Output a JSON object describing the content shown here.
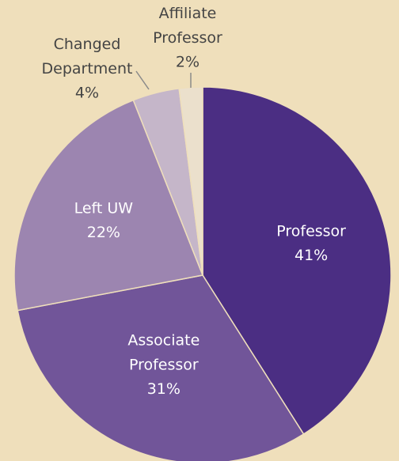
{
  "chart_data": {
    "type": "pie",
    "categories": [
      "Professor",
      "Associate Professor",
      "Left UW",
      "Changed Department",
      "Affiliate Professor"
    ],
    "values": [
      41,
      31,
      22,
      4,
      2
    ],
    "value_labels": [
      "41%",
      "31%",
      "22%",
      "4%",
      "2%"
    ],
    "colors": [
      "#4b2e83",
      "#715599",
      "#9c85b0",
      "#c5b6c9",
      "#ebe0cc"
    ],
    "start_angle": 0,
    "direction": "clockwise"
  }
}
